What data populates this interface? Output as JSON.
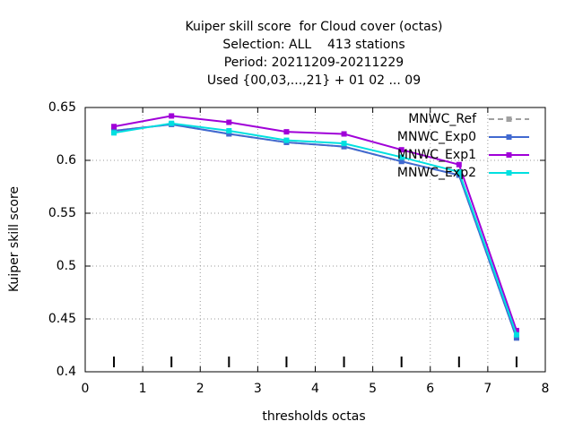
{
  "chart_data": {
    "type": "line",
    "title": [
      "Kuiper skill score  for Cloud cover (octas)",
      "Selection: ALL    413 stations",
      "Period: 20211209-20211229",
      "Used {00,03,...,21} + 01 02 ... 09"
    ],
    "xlabel": "thresholds octas",
    "ylabel": "Kuiper skill score",
    "x": [
      0.5,
      1.5,
      2.5,
      3.5,
      4.5,
      5.5,
      6.5,
      7.5
    ],
    "series": [
      {
        "name": "MNWC_Ref",
        "color": "#a0a0a0",
        "dashed": true,
        "values": [
          0.628,
          0.634,
          0.625,
          0.617,
          0.613,
          0.599,
          0.586,
          0.432
        ]
      },
      {
        "name": "MNWC_Exp0",
        "color": "#4169d0",
        "values": [
          0.628,
          0.634,
          0.625,
          0.617,
          0.613,
          0.599,
          0.586,
          0.432
        ]
      },
      {
        "name": "MNWC_Exp1",
        "color": "#a000d8",
        "values": [
          0.632,
          0.642,
          0.636,
          0.627,
          0.625,
          0.61,
          0.596,
          0.439
        ]
      },
      {
        "name": "MNWC_Exp2",
        "color": "#00e0e0",
        "values": [
          0.626,
          0.635,
          0.628,
          0.619,
          0.616,
          0.603,
          0.589,
          0.435
        ]
      }
    ],
    "xlim": [
      0,
      8
    ],
    "xticks": [
      0,
      1,
      2,
      3,
      4,
      5,
      6,
      7,
      8
    ],
    "ylim": [
      0.4,
      0.65
    ],
    "yticks": [
      0.4,
      0.45,
      0.5,
      0.55,
      0.6,
      0.65
    ],
    "grid": true,
    "legend": "top-right"
  }
}
